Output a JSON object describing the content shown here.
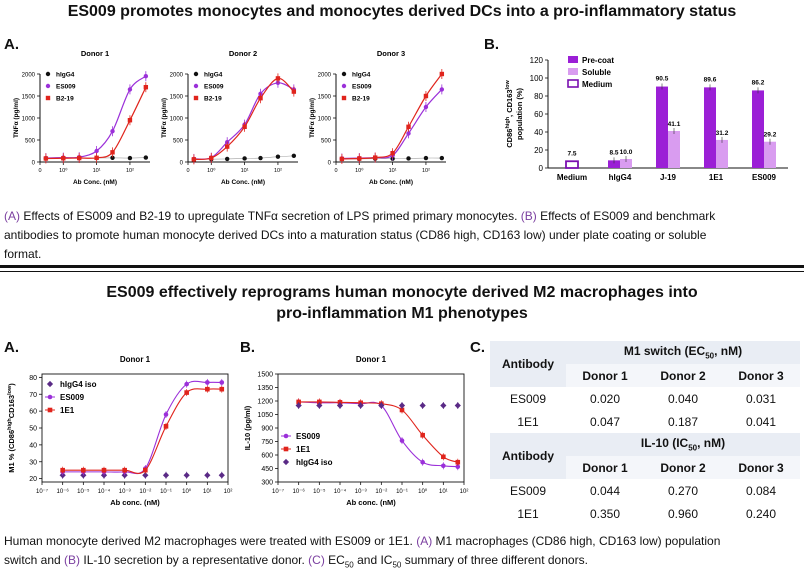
{
  "top": {
    "title": "ES009 promotes monocytes and monocytes derived DCs into a pro-inflammatory status",
    "letter_a": "A.",
    "letter_b": "B.",
    "caption_ref_a": "(A)",
    "caption_a": " Effects of ES009 and B2-19 to upregulate TNFα secretion of LPS primed primary monocytes. ",
    "caption_ref_b": "(B)",
    "caption_b1": " Effects of ES009 and benchmark",
    "caption_b2": "antibodies to promote human monocyte derived DCs into a maturation status (CD86 high, CD163 low) under plate coating or soluble",
    "caption_b3": "format."
  },
  "bottom": {
    "title_line1": "ES009 effectively reprograms human monocyte derived M2 macrophages into",
    "title_line2": "pro-inflammation M1 phenotypes",
    "letter_a": "A.",
    "letter_b": "B.",
    "letter_c": "C.",
    "caption_p1": "Human monocyte derived M2 macrophages were treated with ES009 or 1E1. ",
    "caption_ref_a": "(A)",
    "caption_p2": " M1 macrophages (CD86 high, CD163 low) population",
    "caption_p3": "switch and ",
    "caption_ref_b": "(B)",
    "caption_p4": " IL-10 secretion by a representative donor. ",
    "caption_ref_c": "(C)",
    "caption_ec": " EC",
    "caption_ec_sub": "50",
    "caption_and": " and IC",
    "caption_ic_sub": "50",
    "caption_end": " summary of three different donors."
  },
  "table": {
    "m1_header": "M1 switch (EC",
    "m1_sub": "50",
    "m1_tail": ", nM)",
    "il_header": "IL-10 (IC",
    "il_sub": "50",
    "il_tail": ", nM)",
    "antibody_label": "Antibody",
    "donors": [
      "Donor 1",
      "Donor 2",
      "Donor 3"
    ],
    "m1_rows": [
      {
        "name": "ES009",
        "values": [
          "0.020",
          "0.040",
          "0.031"
        ]
      },
      {
        "name": "1E1",
        "values": [
          "0.047",
          "0.187",
          "0.041"
        ]
      }
    ],
    "il_rows": [
      {
        "name": "ES009",
        "values": [
          "0.044",
          "0.270",
          "0.084"
        ]
      },
      {
        "name": "1E1",
        "values": [
          "0.350",
          "0.960",
          "0.240"
        ]
      }
    ]
  },
  "colors": {
    "ES009": "#9b30d9",
    "B2-19": "#e0241c",
    "1E1": "#e0241c",
    "hIgG4": "#111111",
    "hIgG4_iso": "#5a2a86",
    "precoat": "#9b1fd6",
    "soluble": "#d99cf0",
    "medium": "#7a0fb0"
  },
  "chart_data": [
    {
      "type": "line",
      "title": "Donor 1",
      "xlabel": "Ab Conc. (nM)",
      "ylabel": "TNFα (pg/ml)",
      "xscale": "log",
      "xticks": [
        "0",
        "10⁰",
        "10¹",
        "10²"
      ],
      "ylim": [
        0,
        2000
      ],
      "yticks": [
        "0",
        "500",
        "1000",
        "1500",
        "2000"
      ],
      "legend": [
        "hIgG4",
        "ES009",
        "B2-19"
      ],
      "series": [
        {
          "name": "hIgG4",
          "x": [
            0.3,
            1,
            3,
            10,
            30,
            100,
            300
          ],
          "y": [
            80,
            85,
            90,
            90,
            95,
            90,
            100
          ]
        },
        {
          "name": "ES009",
          "x": [
            0.3,
            1,
            3,
            10,
            30,
            100,
            300
          ],
          "y": [
            90,
            100,
            110,
            250,
            700,
            1650,
            1950
          ]
        },
        {
          "name": "B2-19",
          "x": [
            0.3,
            1,
            3,
            10,
            30,
            100,
            300
          ],
          "y": [
            80,
            85,
            90,
            95,
            220,
            950,
            1700
          ]
        }
      ]
    },
    {
      "type": "line",
      "title": "Donor 2",
      "xlabel": "Ab Conc. (nM)",
      "ylabel": "TNFα (pg/ml)",
      "xscale": "log",
      "xticks": [
        "0",
        "10⁰",
        "10¹",
        "10²"
      ],
      "ylim": [
        0,
        2000
      ],
      "yticks": [
        "0",
        "500",
        "1000",
        "1500",
        "2000"
      ],
      "legend": [
        "hIgG4",
        "ES009",
        "B2-19"
      ],
      "series": [
        {
          "name": "hIgG4",
          "x": [
            0.3,
            1,
            3,
            10,
            30,
            100,
            300
          ],
          "y": [
            60,
            65,
            70,
            80,
            90,
            120,
            140
          ]
        },
        {
          "name": "ES009",
          "x": [
            0.3,
            1,
            3,
            10,
            30,
            100,
            300
          ],
          "y": [
            70,
            100,
            450,
            850,
            1550,
            1800,
            1650
          ]
        },
        {
          "name": "B2-19",
          "x": [
            0.3,
            1,
            3,
            10,
            30,
            100,
            300
          ],
          "y": [
            60,
            90,
            350,
            800,
            1450,
            1900,
            1600
          ]
        }
      ]
    },
    {
      "type": "line",
      "title": "Donor 3",
      "xlabel": "Ab Conc. (nM)",
      "ylabel": "TNFα (pg/ml)",
      "xscale": "log",
      "xticks": [
        "0",
        "10⁰",
        "10¹",
        "10²"
      ],
      "ylim": [
        0,
        2000
      ],
      "yticks": [
        "0",
        "500",
        "1000",
        "1500",
        "2000"
      ],
      "legend": [
        "hIgG4",
        "ES009",
        "B2-19"
      ],
      "series": [
        {
          "name": "hIgG4",
          "x": [
            0.3,
            1,
            3,
            10,
            30,
            100,
            300
          ],
          "y": [
            70,
            70,
            75,
            75,
            80,
            90,
            90
          ]
        },
        {
          "name": "ES009",
          "x": [
            0.3,
            1,
            3,
            10,
            30,
            100,
            300
          ],
          "y": [
            80,
            90,
            100,
            150,
            650,
            1250,
            1650
          ]
        },
        {
          "name": "B2-19",
          "x": [
            0.3,
            1,
            3,
            10,
            30,
            100,
            300
          ],
          "y": [
            70,
            80,
            100,
            200,
            800,
            1500,
            2000
          ]
        }
      ]
    },
    {
      "type": "bar",
      "ylabel_pre": "CD86",
      "ylabel_sup1": "high",
      "ylabel_mid": ", CD163",
      "ylabel_sup2": "low",
      "ylabel_line2": "population (%)",
      "ylim": [
        0,
        120
      ],
      "yticks": [
        "0",
        "20",
        "40",
        "60",
        "80",
        "100",
        "120"
      ],
      "categories": [
        "Medium",
        "hIgG4",
        "J-19",
        "1E1",
        "ES009"
      ],
      "legend": [
        "Pre-coat",
        "Soluble",
        "Medium"
      ],
      "series": [
        {
          "name": "Medium",
          "values": [
            7.5,
            null,
            null,
            null,
            null
          ],
          "labels": [
            "7.5",
            "",
            "",
            "",
            ""
          ]
        },
        {
          "name": "Pre-coat",
          "values": [
            null,
            8.5,
            90.5,
            89.6,
            86.2
          ],
          "labels": [
            "",
            "8.5",
            "90.5",
            "89.6",
            "86.2"
          ]
        },
        {
          "name": "Soluble",
          "values": [
            null,
            10.0,
            41.1,
            31.2,
            29.2
          ],
          "labels": [
            "",
            "10.0",
            "41.1",
            "31.2",
            "29.2"
          ]
        }
      ]
    },
    {
      "type": "line",
      "title": "Donor 1",
      "xlabel": "Ab conc. (nM)",
      "ylabel_pre": "M1 % (CD86",
      "ylabel_sup1": "high",
      "ylabel_mid": "CD163",
      "ylabel_sup2": "low",
      "ylabel_post": ")",
      "xscale": "log",
      "xrange_exp": [
        -7,
        2
      ],
      "xticks": [
        "10⁻⁷",
        "10⁻⁶",
        "10⁻⁵",
        "10⁻⁴",
        "10⁻³",
        "10⁻²",
        "10⁻¹",
        "10⁰",
        "10¹",
        "10²"
      ],
      "ylim": [
        18,
        82
      ],
      "yticks": [
        "20",
        "30",
        "40",
        "50",
        "60",
        "70",
        "80"
      ],
      "legend": [
        "hIgG4 iso",
        "ES009",
        "1E1"
      ],
      "series": [
        {
          "name": "hIgG4 iso",
          "x": [
            1e-06,
            1e-05,
            0.0001,
            0.001,
            0.01,
            0.1,
            1,
            10,
            50
          ],
          "y": [
            22,
            22,
            22,
            22,
            22,
            22,
            22,
            22,
            22
          ]
        },
        {
          "name": "ES009",
          "x": [
            1e-06,
            1e-05,
            0.0001,
            0.001,
            0.01,
            0.1,
            1,
            10,
            50
          ],
          "y": [
            24,
            24,
            24,
            24,
            26,
            58,
            76,
            77,
            77
          ]
        },
        {
          "name": "1E1",
          "x": [
            1e-06,
            1e-05,
            0.0001,
            0.001,
            0.01,
            0.1,
            1,
            10,
            50
          ],
          "y": [
            25,
            25,
            25,
            25,
            25,
            51,
            71,
            73,
            73
          ]
        }
      ]
    },
    {
      "type": "line",
      "title": "Donor 1",
      "xlabel": "Ab conc. (nM)",
      "ylabel": "IL-10 (pg/ml)",
      "xscale": "log",
      "xrange_exp": [
        -7,
        2
      ],
      "xticks": [
        "10⁻⁷",
        "10⁻⁶",
        "10⁻⁵",
        "10⁻⁴",
        "10⁻³",
        "10⁻²",
        "10⁻¹",
        "10⁰",
        "10¹",
        "10²"
      ],
      "ylim": [
        300,
        1500
      ],
      "yticks": [
        "300",
        "450",
        "600",
        "750",
        "900",
        "1050",
        "1200",
        "1350",
        "1500"
      ],
      "legend": [
        "ES009",
        "1E1",
        "hIgG4 iso"
      ],
      "series": [
        {
          "name": "ES009",
          "x": [
            1e-06,
            1e-05,
            0.0001,
            0.001,
            0.01,
            0.1,
            1,
            10,
            50
          ],
          "y": [
            1190,
            1180,
            1180,
            1170,
            1150,
            760,
            520,
            480,
            470
          ]
        },
        {
          "name": "1E1",
          "x": [
            1e-06,
            1e-05,
            0.0001,
            0.001,
            0.01,
            0.1,
            1,
            10,
            50
          ],
          "y": [
            1190,
            1190,
            1185,
            1180,
            1170,
            1100,
            820,
            580,
            520
          ]
        },
        {
          "name": "hIgG4 iso",
          "x": [
            1e-06,
            1e-05,
            0.0001,
            0.001,
            0.01,
            0.1,
            1,
            10,
            50
          ],
          "y": [
            1150,
            1150,
            1150,
            1150,
            1150,
            1150,
            1150,
            1150,
            1150
          ]
        }
      ]
    }
  ]
}
